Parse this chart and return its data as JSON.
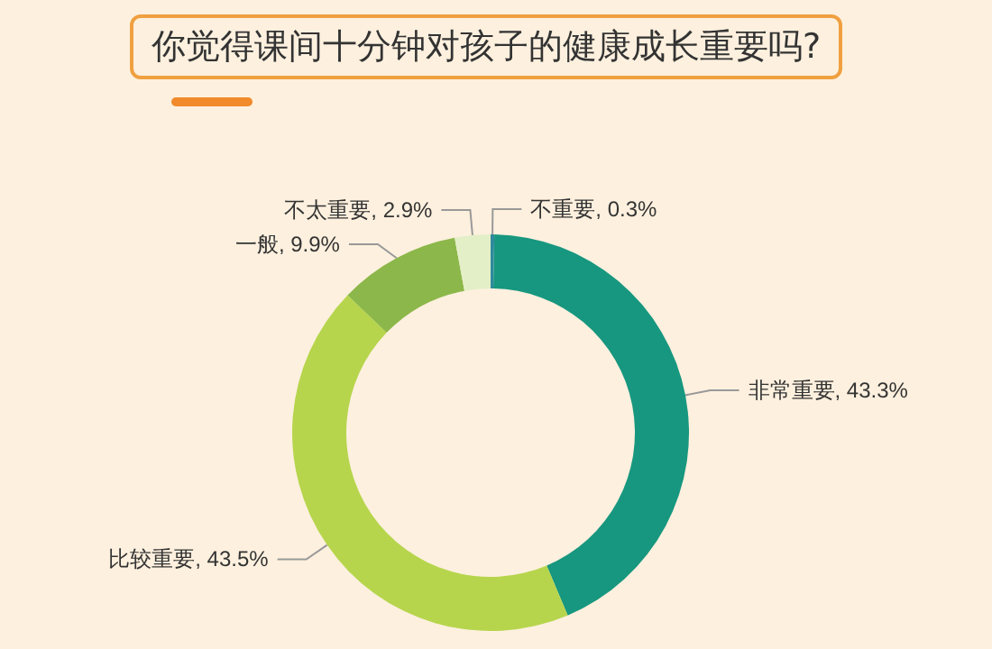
{
  "chart_data": {
    "type": "donut",
    "title": "你觉得课间十分钟对孩子的健康成长重要吗?",
    "categories": [
      "不重要",
      "非常重要",
      "比较重要",
      "一般",
      "不太重要"
    ],
    "values": [
      0.3,
      43.3,
      43.5,
      9.9,
      2.9
    ],
    "value_labels": [
      "0.3%",
      "43.3%",
      "43.5%",
      "9.9%",
      "2.9%"
    ],
    "colors": [
      "#2f8a9e",
      "#17977f",
      "#b6d54c",
      "#8cb74a",
      "#e3efc6"
    ],
    "legend": false
  }
}
